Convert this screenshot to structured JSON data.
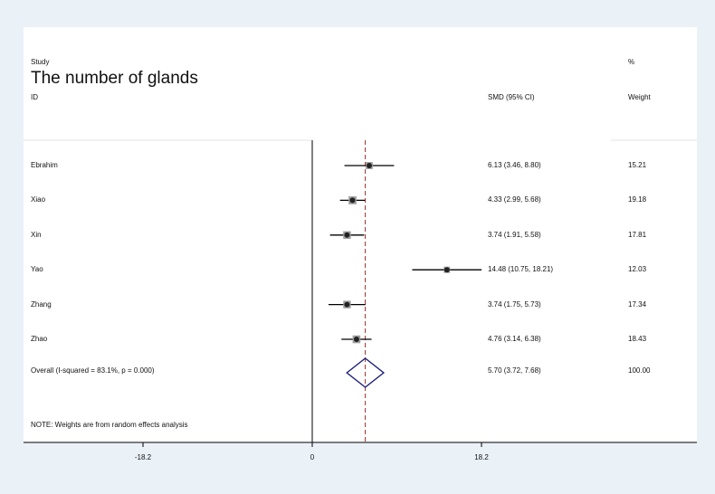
{
  "chart_data": {
    "type": "forest",
    "title": "The number of glands",
    "header": {
      "study_top": "Study",
      "study_bottom": "ID",
      "effect": "SMD (95% CI)",
      "weight_top": "%",
      "weight_bottom": "Weight"
    },
    "studies": [
      {
        "name": "Ebrahim",
        "smd": 6.13,
        "lower": 3.46,
        "upper": 8.8,
        "ci_text": "6.13 (3.46, 8.80)",
        "weight": 15.21,
        "weight_text": "15.21"
      },
      {
        "name": "Xiao",
        "smd": 4.33,
        "lower": 2.99,
        "upper": 5.68,
        "ci_text": "4.33 (2.99, 5.68)",
        "weight": 19.18,
        "weight_text": "19.18"
      },
      {
        "name": "Xin",
        "smd": 3.74,
        "lower": 1.91,
        "upper": 5.58,
        "ci_text": "3.74 (1.91, 5.58)",
        "weight": 17.81,
        "weight_text": "17.81"
      },
      {
        "name": "Yao",
        "smd": 14.48,
        "lower": 10.75,
        "upper": 18.21,
        "ci_text": "14.48 (10.75, 18.21)",
        "weight": 12.03,
        "weight_text": "12.03"
      },
      {
        "name": "Zhang",
        "smd": 3.74,
        "lower": 1.75,
        "upper": 5.73,
        "ci_text": "3.74 (1.75, 5.73)",
        "weight": 17.34,
        "weight_text": "17.34"
      },
      {
        "name": "Zhao",
        "smd": 4.76,
        "lower": 3.14,
        "upper": 6.38,
        "ci_text": "4.76 (3.14, 6.38)",
        "weight": 18.43,
        "weight_text": "18.43"
      }
    ],
    "overall": {
      "label": "Overall  (I-squared = 83.1%, p = 0.000)",
      "smd": 5.7,
      "lower": 3.72,
      "upper": 7.68,
      "ci_text": "5.70 (3.72, 7.68)",
      "weight_text": "100.00"
    },
    "note": "NOTE: Weights are from random effects analysis",
    "x_ticks": [
      -18.2,
      0,
      18.2
    ],
    "x_tick_labels": [
      "-18.2",
      "0",
      "18.2"
    ],
    "xlim": [
      -33,
      43
    ],
    "colors": {
      "marker": "#222222",
      "diamond": "#1f1f7a",
      "overall_line": "#a0302e",
      "background": "#eaf1f7"
    }
  }
}
